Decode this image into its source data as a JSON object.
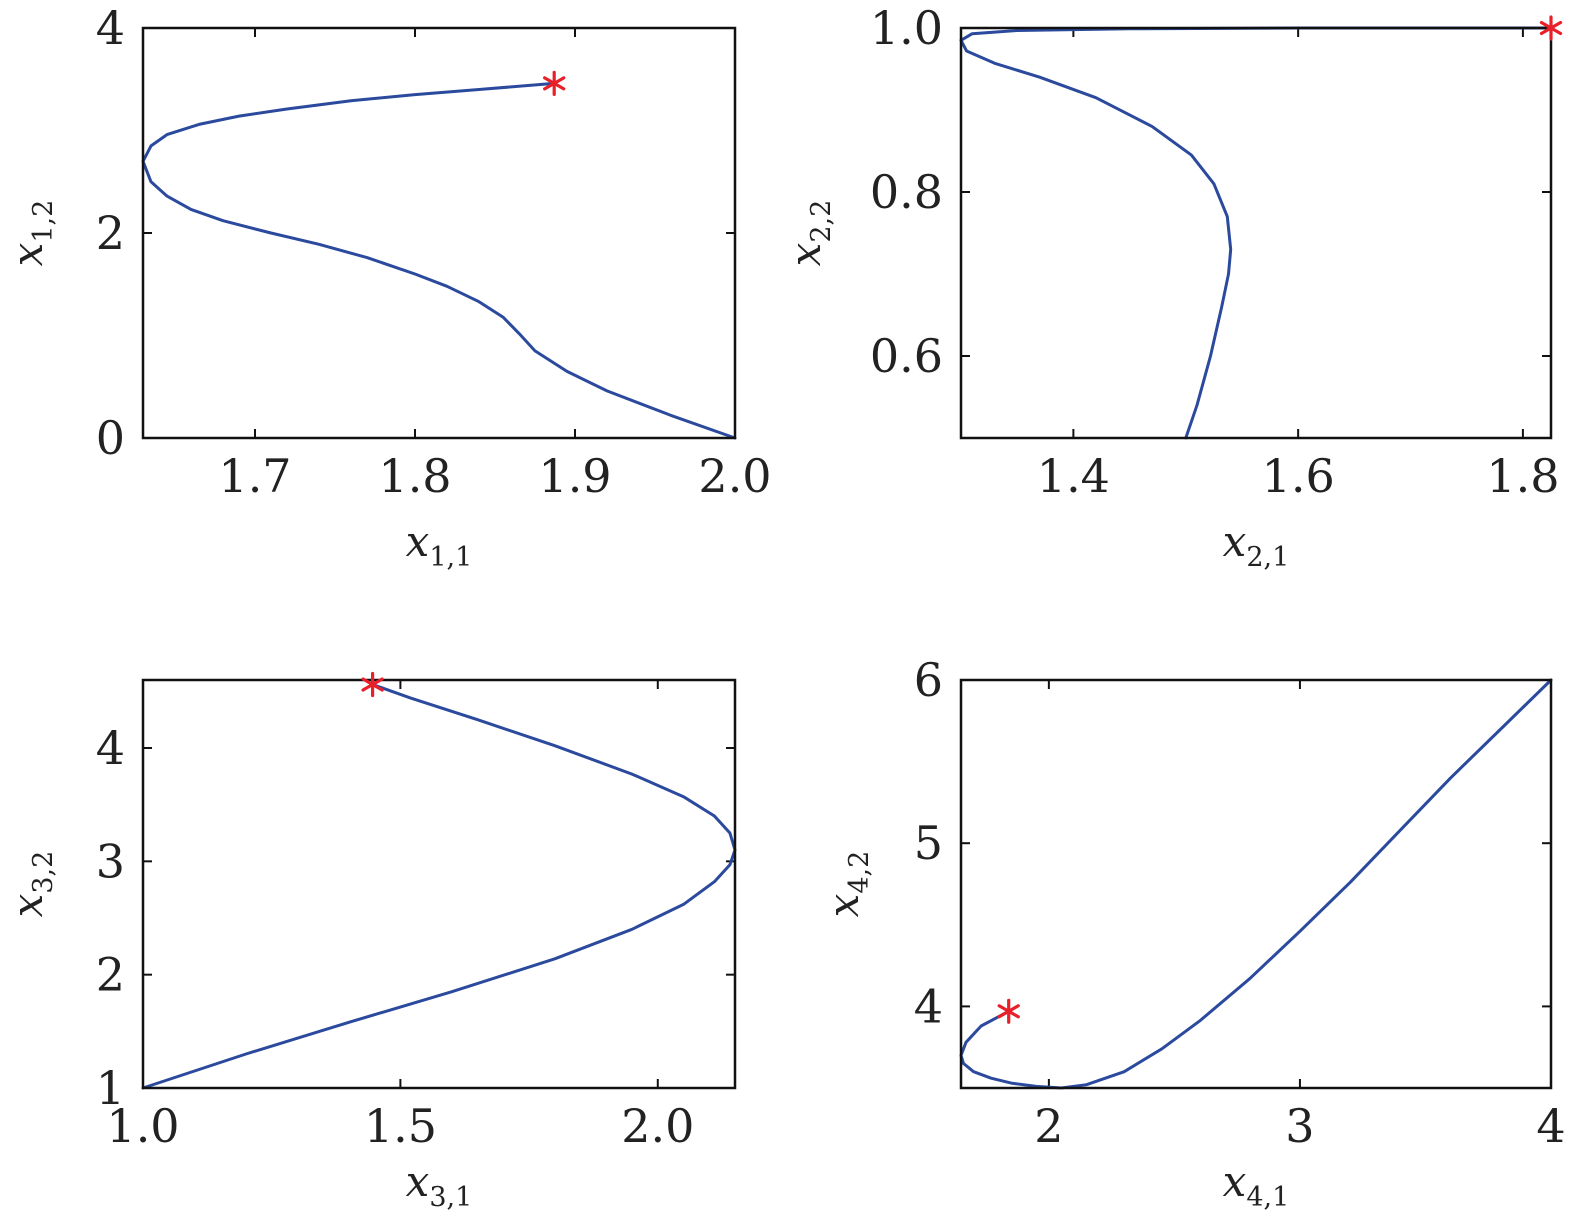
{
  "style": {
    "curve_color": "#2b4a9e",
    "marker_color": "#e8202a",
    "marker_symbol": "asterisk"
  },
  "chart_data": [
    {
      "id": "p1",
      "type": "line",
      "title": "",
      "xlabel": "x",
      "xlabel_sub": "1,1",
      "ylabel": "x",
      "ylabel_sub": "1,2",
      "xlim": [
        1.63,
        2.0
      ],
      "ylim": [
        0,
        4
      ],
      "xticks": [
        1.7,
        1.8,
        1.9,
        2.0
      ],
      "xtick_labels": [
        "1.7",
        "1.8",
        "1.9",
        "2.0"
      ],
      "yticks": [
        0,
        2,
        4
      ],
      "ytick_labels": [
        "0",
        "2",
        "4"
      ],
      "grid": false,
      "series": [
        {
          "x": [
            2.0,
            1.96,
            1.92,
            1.895,
            1.875,
            1.865,
            1.855,
            1.84,
            1.82,
            1.8,
            1.77,
            1.74,
            1.71,
            1.68,
            1.66,
            1.645,
            1.635,
            1.63,
            1.635,
            1.645,
            1.665,
            1.69,
            1.72,
            1.76,
            1.8,
            1.84,
            1.887
          ],
          "y": [
            0.0,
            0.22,
            0.46,
            0.65,
            0.85,
            1.02,
            1.18,
            1.33,
            1.48,
            1.6,
            1.76,
            1.89,
            2.0,
            2.12,
            2.23,
            2.36,
            2.5,
            2.7,
            2.85,
            2.96,
            3.06,
            3.14,
            3.21,
            3.29,
            3.35,
            3.4,
            3.46
          ]
        }
      ],
      "markers": [
        {
          "x": 1.887,
          "y": 3.46
        }
      ]
    },
    {
      "id": "p2",
      "type": "line",
      "title": "",
      "xlabel": "x",
      "xlabel_sub": "2,1",
      "ylabel": "x",
      "ylabel_sub": "2,2",
      "xlim": [
        1.3,
        1.825
      ],
      "ylim": [
        0.5,
        1.0
      ],
      "xticks": [
        1.4,
        1.6,
        1.8
      ],
      "xtick_labels": [
        "1.4",
        "1.6",
        "1.8"
      ],
      "yticks": [
        0.6,
        0.8,
        1.0
      ],
      "ytick_labels": [
        "0.6",
        "0.8",
        "1.0"
      ],
      "grid": false,
      "series": [
        {
          "x": [
            1.5,
            1.51,
            1.522,
            1.532,
            1.538,
            1.54,
            1.537,
            1.525,
            1.505,
            1.47,
            1.42,
            1.37,
            1.33,
            1.305,
            1.3,
            1.31,
            1.35,
            1.45,
            1.6,
            1.75,
            1.825
          ],
          "y": [
            0.5,
            0.54,
            0.6,
            0.66,
            0.7,
            0.73,
            0.77,
            0.81,
            0.845,
            0.88,
            0.915,
            0.94,
            0.957,
            0.972,
            0.985,
            0.993,
            0.997,
            0.999,
            1.0,
            1.0,
            1.0
          ]
        }
      ],
      "markers": [
        {
          "x": 1.825,
          "y": 1.0
        }
      ]
    },
    {
      "id": "p3",
      "type": "line",
      "title": "",
      "xlabel": "x",
      "xlabel_sub": "3,1",
      "ylabel": "x",
      "ylabel_sub": "3,2",
      "xlim": [
        1.0,
        2.15
      ],
      "ylim": [
        1,
        4.6
      ],
      "xticks": [
        1.0,
        1.5,
        2.0
      ],
      "xtick_labels": [
        "1.0",
        "1.5",
        "2.0"
      ],
      "yticks": [
        1,
        2,
        3,
        4
      ],
      "ytick_labels": [
        "1",
        "2",
        "3",
        "4"
      ],
      "grid": false,
      "series": [
        {
          "x": [
            1.0,
            1.2,
            1.4,
            1.6,
            1.8,
            1.95,
            2.05,
            2.11,
            2.14,
            2.15,
            2.14,
            2.11,
            2.05,
            1.95,
            1.8,
            1.65,
            1.52,
            1.446
          ],
          "y": [
            1.0,
            1.3,
            1.58,
            1.85,
            2.14,
            2.4,
            2.62,
            2.82,
            2.97,
            3.1,
            3.25,
            3.4,
            3.57,
            3.77,
            4.02,
            4.25,
            4.44,
            4.56
          ]
        }
      ],
      "markers": [
        {
          "x": 1.446,
          "y": 4.56
        }
      ]
    },
    {
      "id": "p4",
      "type": "line",
      "title": "",
      "xlabel": "x",
      "xlabel_sub": "4,1",
      "ylabel": "x",
      "ylabel_sub": "4,2",
      "xlim": [
        1.65,
        4.0
      ],
      "ylim": [
        3.5,
        6.0
      ],
      "xticks": [
        2,
        3,
        4
      ],
      "xtick_labels": [
        "2",
        "3",
        "4"
      ],
      "yticks": [
        4,
        5,
        6
      ],
      "ytick_labels": [
        "4",
        "5",
        "6"
      ],
      "grid": false,
      "series": [
        {
          "x": [
            4.0,
            3.8,
            3.6,
            3.4,
            3.2,
            3.0,
            2.8,
            2.6,
            2.45,
            2.3,
            2.15,
            2.05,
            1.95,
            1.85,
            1.77,
            1.7,
            1.66,
            1.65,
            1.67,
            1.73,
            1.84
          ],
          "y": [
            6.0,
            5.7,
            5.4,
            5.08,
            4.76,
            4.46,
            4.17,
            3.91,
            3.74,
            3.6,
            3.52,
            3.5,
            3.51,
            3.53,
            3.56,
            3.6,
            3.65,
            3.7,
            3.78,
            3.88,
            3.97
          ]
        }
      ],
      "markers": [
        {
          "x": 1.84,
          "y": 3.97
        }
      ]
    }
  ]
}
